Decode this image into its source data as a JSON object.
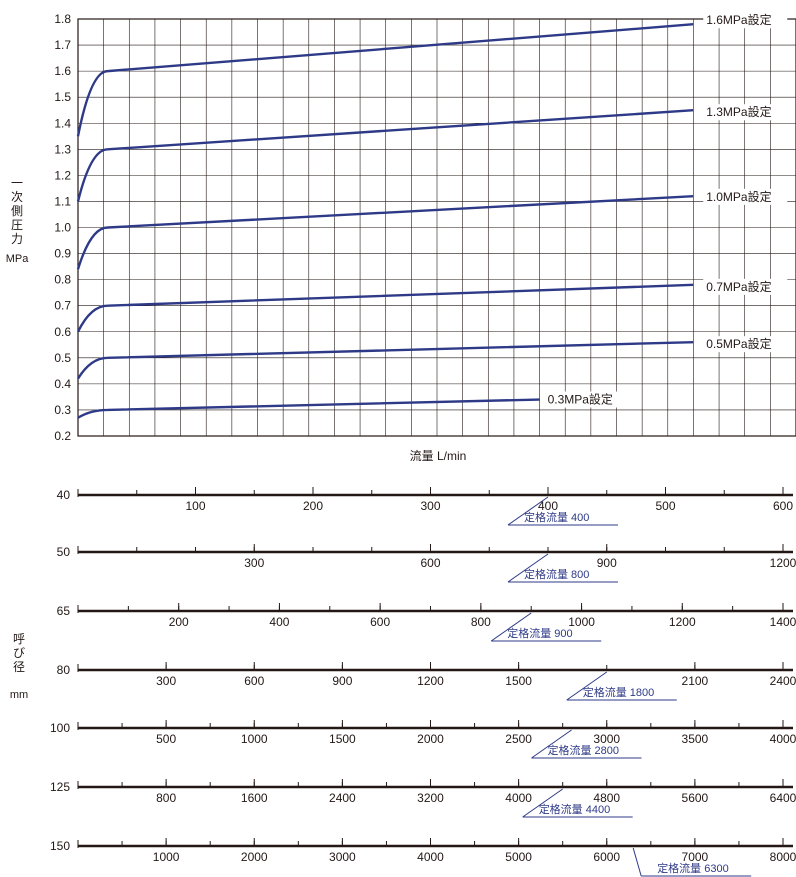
{
  "colors": {
    "curve": "#2e3a87",
    "axis": "#231815",
    "grid": "#231815",
    "annotation": "#2e3a87"
  },
  "y_axis_label": [
    "一",
    "次",
    "側",
    "圧",
    "力"
  ],
  "y_axis_unit": "MPa",
  "nominal_label": [
    "呼",
    "び",
    "径"
  ],
  "nominal_unit": "mm",
  "chart_data": {
    "type": "line",
    "title": "",
    "xlabel": "流量 L/min",
    "ylabel": "一次側圧力 MPa",
    "ylim": [
      0.2,
      1.8
    ],
    "yticks": [
      "1.8",
      "1.7",
      "1.6",
      "1.5",
      "1.4",
      "1.3",
      "1.2",
      "1.1",
      "1.0",
      "0.9",
      "0.8",
      "0.7",
      "0.6",
      "0.5",
      "0.4",
      "0.3",
      "0.2"
    ],
    "xlim": [
      0,
      28
    ],
    "grid": true,
    "series": [
      {
        "name": "1.6MPa設定",
        "points": [
          [
            0,
            1.35
          ],
          [
            0.5,
            1.58
          ],
          [
            1,
            1.6
          ],
          [
            24,
            1.78
          ]
        ]
      },
      {
        "name": "1.3MPa設定",
        "points": [
          [
            0,
            1.1
          ],
          [
            0.5,
            1.28
          ],
          [
            1,
            1.3
          ],
          [
            24,
            1.45
          ]
        ]
      },
      {
        "name": "1.0MPa設定",
        "points": [
          [
            0,
            0.84
          ],
          [
            0.5,
            0.98
          ],
          [
            1,
            1.0
          ],
          [
            24,
            1.12
          ]
        ]
      },
      {
        "name": "0.7MPa設定",
        "points": [
          [
            0,
            0.6
          ],
          [
            0.5,
            0.69
          ],
          [
            1,
            0.7
          ],
          [
            24,
            0.78
          ]
        ]
      },
      {
        "name": "0.5MPa設定",
        "points": [
          [
            0,
            0.42
          ],
          [
            0.5,
            0.49
          ],
          [
            1,
            0.5
          ],
          [
            24,
            0.56
          ]
        ]
      },
      {
        "name": "0.3MPa設定",
        "points": [
          [
            0,
            0.27
          ],
          [
            0.5,
            0.3
          ],
          [
            1,
            0.3
          ],
          [
            18,
            0.34
          ]
        ]
      }
    ]
  },
  "scales": [
    {
      "size": "40",
      "max": 600,
      "minor": 50,
      "labels": [
        "100",
        "200",
        "300",
        "400",
        "500",
        "600"
      ],
      "label_values": [
        100,
        200,
        300,
        400,
        500,
        600
      ],
      "rated_value": 400,
      "rated_label": "定格流量 400"
    },
    {
      "size": "50",
      "max": 1200,
      "minor": 100,
      "labels": [
        "300",
        "600",
        "900",
        "1200"
      ],
      "label_values": [
        300,
        600,
        900,
        1200
      ],
      "rated_value": 800,
      "rated_label": "定格流量 800"
    },
    {
      "size": "65",
      "max": 1400,
      "minor": 100,
      "labels": [
        "200",
        "400",
        "600",
        "800",
        "1000",
        "1200",
        "1400"
      ],
      "label_values": [
        200,
        400,
        600,
        800,
        1000,
        1200,
        1400
      ],
      "rated_value": 900,
      "rated_label": "定格流量 900"
    },
    {
      "size": "80",
      "max": 2400,
      "minor": 300,
      "labels": [
        "300",
        "600",
        "900",
        "1200",
        "1500",
        "2100",
        "2400"
      ],
      "label_values": [
        300,
        600,
        900,
        1200,
        1500,
        2100,
        2400
      ],
      "rated_value": 1800,
      "rated_label": "定格流量 1800"
    },
    {
      "size": "100",
      "max": 4000,
      "minor": 250,
      "labels": [
        "500",
        "1000",
        "1500",
        "2000",
        "2500",
        "3000",
        "3500",
        "4000"
      ],
      "label_values": [
        500,
        1000,
        1500,
        2000,
        2500,
        3000,
        3500,
        4000
      ],
      "rated_value": 2800,
      "rated_label": "定格流量 2800"
    },
    {
      "size": "125",
      "max": 6400,
      "minor": 400,
      "labels": [
        "800",
        "1600",
        "2400",
        "3200",
        "4000",
        "4800",
        "5600",
        "6400"
      ],
      "label_values": [
        800,
        1600,
        2400,
        3200,
        4000,
        4800,
        5600,
        6400
      ],
      "rated_value": 4400,
      "rated_label": "定格流量 4400"
    },
    {
      "size": "150",
      "max": 8000,
      "minor": 500,
      "labels": [
        "1000",
        "2000",
        "3000",
        "4000",
        "5000",
        "6000",
        "7000",
        "8000"
      ],
      "label_values": [
        1000,
        2000,
        3000,
        4000,
        5000,
        6000,
        7000,
        8000
      ],
      "rated_value": 6300,
      "rated_label": "定格流量 6300"
    }
  ]
}
